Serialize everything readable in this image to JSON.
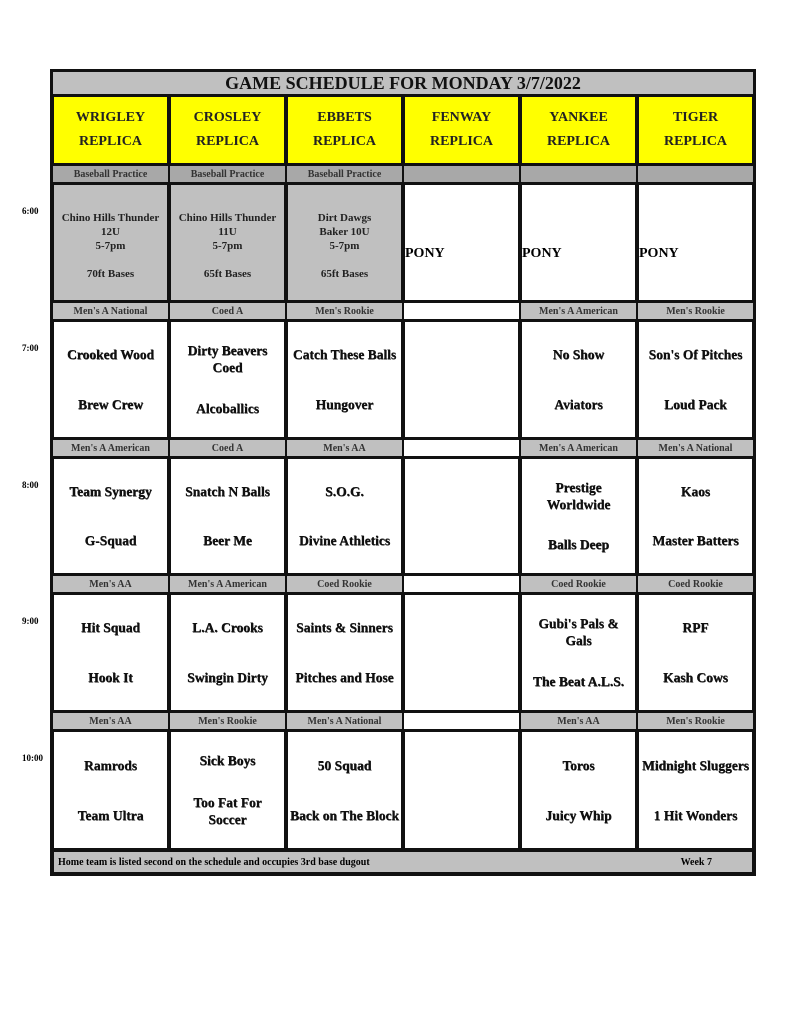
{
  "title": "GAME SCHEDULE FOR MONDAY 3/7/2022",
  "fields": [
    [
      "WRIGLEY",
      "REPLICA"
    ],
    [
      "CROSLEY",
      "REPLICA"
    ],
    [
      "EBBETS",
      "REPLICA"
    ],
    [
      "FENWAY",
      "REPLICA"
    ],
    [
      "YANKEE",
      "REPLICA"
    ],
    [
      "TIGER",
      "REPLICA"
    ]
  ],
  "slots": [
    {
      "time": "6:00",
      "labels": [
        "Baseball Practice",
        "Baseball Practice",
        "Baseball Practice",
        "",
        "",
        ""
      ],
      "cells": [
        {
          "type": "practice",
          "lines": [
            "Chino Hills Thunder",
            "12U",
            "5-7pm",
            "",
            "70ft Bases"
          ]
        },
        {
          "type": "practice",
          "lines": [
            "Chino Hills Thunder",
            "11U",
            "5-7pm",
            "",
            "65ft Bases"
          ]
        },
        {
          "type": "practice",
          "lines": [
            "Dirt Dawgs",
            "Baker 10U",
            "5-7pm",
            "",
            "65ft Bases"
          ]
        },
        {
          "type": "pony",
          "text": "PONY"
        },
        {
          "type": "pony",
          "text": "PONY"
        },
        {
          "type": "pony",
          "text": "PONY"
        }
      ]
    },
    {
      "time": "7:00",
      "labels": [
        "Men's A National",
        "Coed A",
        "Men's Rookie",
        "",
        "Men's A American",
        "Men's Rookie"
      ],
      "cells": [
        {
          "teams": [
            "Crooked Wood",
            "Brew Crew"
          ]
        },
        {
          "teams": [
            "Dirty Beavers Coed",
            "Alcoballics"
          ]
        },
        {
          "teams": [
            "Catch These Balls",
            "Hungover"
          ]
        },
        {
          "teams": [
            "",
            ""
          ]
        },
        {
          "teams": [
            "No Show",
            "Aviators"
          ]
        },
        {
          "teams": [
            "Son's Of Pitches",
            "Loud Pack"
          ]
        }
      ]
    },
    {
      "time": "8:00",
      "labels": [
        "Men's A American",
        "Coed A",
        "Men's AA",
        "",
        "Men's A American",
        "Men's A National"
      ],
      "cells": [
        {
          "teams": [
            "Team Synergy",
            "G-Squad"
          ]
        },
        {
          "teams": [
            "Snatch N Balls",
            "Beer Me"
          ]
        },
        {
          "teams": [
            "S.O.G.",
            "Divine Athletics"
          ]
        },
        {
          "teams": [
            "",
            ""
          ]
        },
        {
          "teams": [
            "Prestige Worldwide",
            "Balls Deep"
          ]
        },
        {
          "teams": [
            "Kaos",
            "Master Batters"
          ]
        }
      ]
    },
    {
      "time": "9:00",
      "labels": [
        "Men's AA",
        "Men's A American",
        "Coed Rookie",
        "",
        "Coed Rookie",
        "Coed Rookie"
      ],
      "cells": [
        {
          "teams": [
            "Hit Squad",
            "Hook It"
          ]
        },
        {
          "teams": [
            "L.A. Crooks",
            "Swingin Dirty"
          ]
        },
        {
          "teams": [
            "Saints & Sinners",
            "Pitches and Hose"
          ]
        },
        {
          "teams": [
            "",
            ""
          ]
        },
        {
          "teams": [
            "Gubi's Pals & Gals",
            "The Beat A.L.S."
          ]
        },
        {
          "teams": [
            "RPF",
            "Kash Cows"
          ]
        }
      ]
    },
    {
      "time": "10:00",
      "labels": [
        "Men's AA",
        "Men's Rookie",
        "Men's A National",
        "",
        "Men's AA",
        "Men's Rookie"
      ],
      "cells": [
        {
          "teams": [
            "Ramrods",
            "Team Ultra"
          ]
        },
        {
          "teams": [
            "Sick Boys",
            "Too Fat For Soccer"
          ]
        },
        {
          "teams": [
            "50 Squad",
            "Back on The Block"
          ]
        },
        {
          "teams": [
            "",
            ""
          ]
        },
        {
          "teams": [
            "Toros",
            "Juicy Whip"
          ]
        },
        {
          "teams": [
            "Midnight Sluggers",
            "1 Hit Wonders"
          ]
        }
      ]
    }
  ],
  "footer": {
    "note": "Home team is listed second on the schedule and occupies 3rd base dugout",
    "week": "Week 7"
  },
  "colors": {
    "header": "#ffff00",
    "label": "#c0c0c0"
  }
}
